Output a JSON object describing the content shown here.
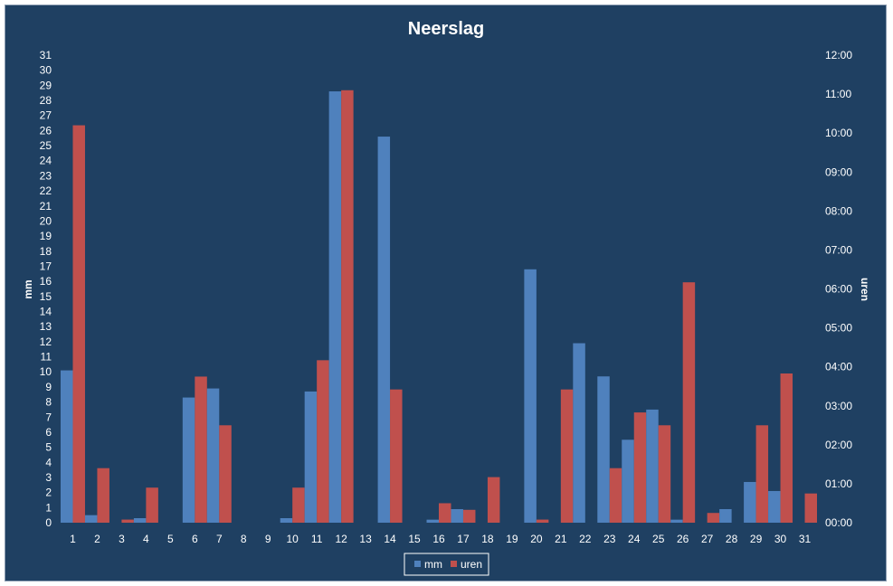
{
  "chart_data": {
    "type": "bar",
    "title": "Neerslag",
    "categories": [
      "1",
      "2",
      "3",
      "4",
      "5",
      "6",
      "7",
      "8",
      "9",
      "10",
      "11",
      "12",
      "13",
      "14",
      "15",
      "16",
      "17",
      "18",
      "19",
      "20",
      "21",
      "22",
      "23",
      "24",
      "25",
      "26",
      "27",
      "28",
      "29",
      "30",
      "31"
    ],
    "series": [
      {
        "name": "mm",
        "axis": "left",
        "values": [
          10.1,
          0.5,
          0,
          0.3,
          0,
          8.3,
          8.9,
          0,
          0,
          0.3,
          8.7,
          28.6,
          0,
          25.6,
          0,
          0.2,
          0.9,
          0,
          0,
          16.8,
          0,
          11.9,
          9.7,
          5.5,
          7.5,
          0.2,
          0,
          0.9,
          2.7,
          2.1,
          0
        ]
      },
      {
        "name": "uren",
        "axis": "right",
        "values_hours": [
          10.2,
          1.4,
          0.08,
          0.9,
          0,
          3.75,
          2.5,
          0,
          0,
          0.9,
          4.17,
          11.1,
          0,
          3.42,
          0,
          0.5,
          0.33,
          1.17,
          0,
          0.08,
          3.42,
          0,
          1.4,
          2.83,
          2.5,
          6.17,
          0.25,
          0,
          2.5,
          3.83,
          0.75
        ]
      }
    ],
    "y_left": {
      "label": "mm",
      "ylim": [
        0,
        31
      ],
      "ticks": [
        "0",
        "1",
        "2",
        "3",
        "4",
        "5",
        "6",
        "7",
        "8",
        "9",
        "10",
        "11",
        "12",
        "13",
        "14",
        "15",
        "16",
        "17",
        "18",
        "19",
        "20",
        "21",
        "22",
        "23",
        "24",
        "25",
        "26",
        "27",
        "28",
        "29",
        "30",
        "31"
      ]
    },
    "y_right": {
      "label": "uren",
      "ylim": [
        0,
        12
      ],
      "ticks": [
        "00:00",
        "01:00",
        "02:00",
        "03:00",
        "04:00",
        "05:00",
        "06:00",
        "07:00",
        "08:00",
        "09:00",
        "10:00",
        "11:00",
        "12:00"
      ]
    },
    "grid": false,
    "legend": {
      "position": "bottom",
      "entries": [
        "mm",
        "uren"
      ]
    },
    "colors": {
      "background": "#1f4062",
      "mm": "#4f81bd",
      "uren": "#c0504d",
      "text": "#ffffff"
    }
  }
}
